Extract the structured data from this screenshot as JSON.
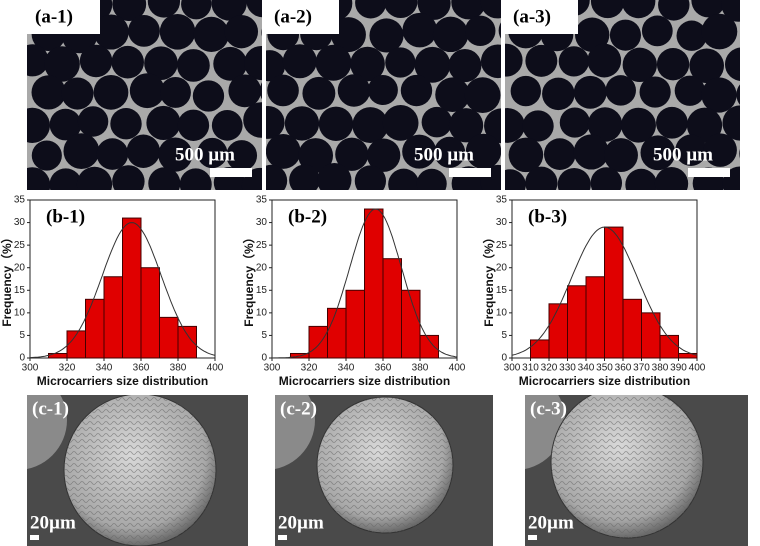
{
  "panels_a": [
    {
      "label": "(a-1)",
      "scale": "500 µm"
    },
    {
      "label": "(a-2)",
      "scale": "500 µm"
    },
    {
      "label": "(a-3)",
      "scale": "500 µm"
    }
  ],
  "chart_data": [
    {
      "type": "histogram",
      "title": "(b-1)",
      "xlabel": "Microcarriers size distribution",
      "ylabel": "Frequency（%）",
      "color": "#e00000",
      "bins": [
        310,
        320,
        330,
        340,
        350,
        360,
        370,
        380,
        390
      ],
      "values": [
        1,
        6,
        13,
        18,
        31,
        20,
        9,
        7
      ],
      "xlim": [
        300,
        400
      ],
      "xticks": [
        300,
        320,
        340,
        360,
        380,
        400
      ],
      "ylim": [
        0,
        35
      ],
      "yticks": [
        0,
        5,
        10,
        15,
        20,
        25,
        30,
        35
      ],
      "fit": {
        "mean": 355,
        "sd": 16,
        "peak": 30
      }
    },
    {
      "type": "histogram",
      "title": "(b-2)",
      "xlabel": "Microcarriers size distribution",
      "ylabel": "Frequency（%）",
      "color": "#e00000",
      "bins": [
        310,
        320,
        330,
        340,
        350,
        360,
        370,
        380,
        390
      ],
      "values": [
        1,
        7,
        11,
        15,
        33,
        22,
        15,
        5
      ],
      "xlim": [
        300,
        400
      ],
      "xticks": [
        300,
        320,
        340,
        360,
        380,
        400
      ],
      "ylim": [
        0,
        35
      ],
      "yticks": [
        0,
        5,
        10,
        15,
        20,
        25,
        30,
        35
      ],
      "fit": {
        "mean": 356,
        "sd": 14,
        "peak": 33
      }
    },
    {
      "type": "histogram",
      "title": "(b-3)",
      "xlabel": "Microcarriers size distribution",
      "ylabel": "Frequency（%）",
      "color": "#e00000",
      "bins": [
        310,
        320,
        330,
        340,
        350,
        360,
        370,
        380,
        390,
        400
      ],
      "values": [
        4,
        12,
        16,
        18,
        29,
        13,
        10,
        5,
        1
      ],
      "xlim": [
        300,
        400
      ],
      "xticks": [
        300,
        310,
        320,
        330,
        340,
        350,
        360,
        370,
        380,
        390,
        400
      ],
      "ylim": [
        0,
        35
      ],
      "yticks": [
        0,
        5,
        10,
        15,
        20,
        25,
        30,
        35
      ],
      "fit": {
        "mean": 350,
        "sd": 18,
        "peak": 29
      }
    }
  ],
  "panels_c": [
    {
      "label": "(c-1)",
      "scale": "20µm"
    },
    {
      "label": "(c-2)",
      "scale": "20µm"
    },
    {
      "label": "(c-3)",
      "scale": "20µm"
    }
  ]
}
